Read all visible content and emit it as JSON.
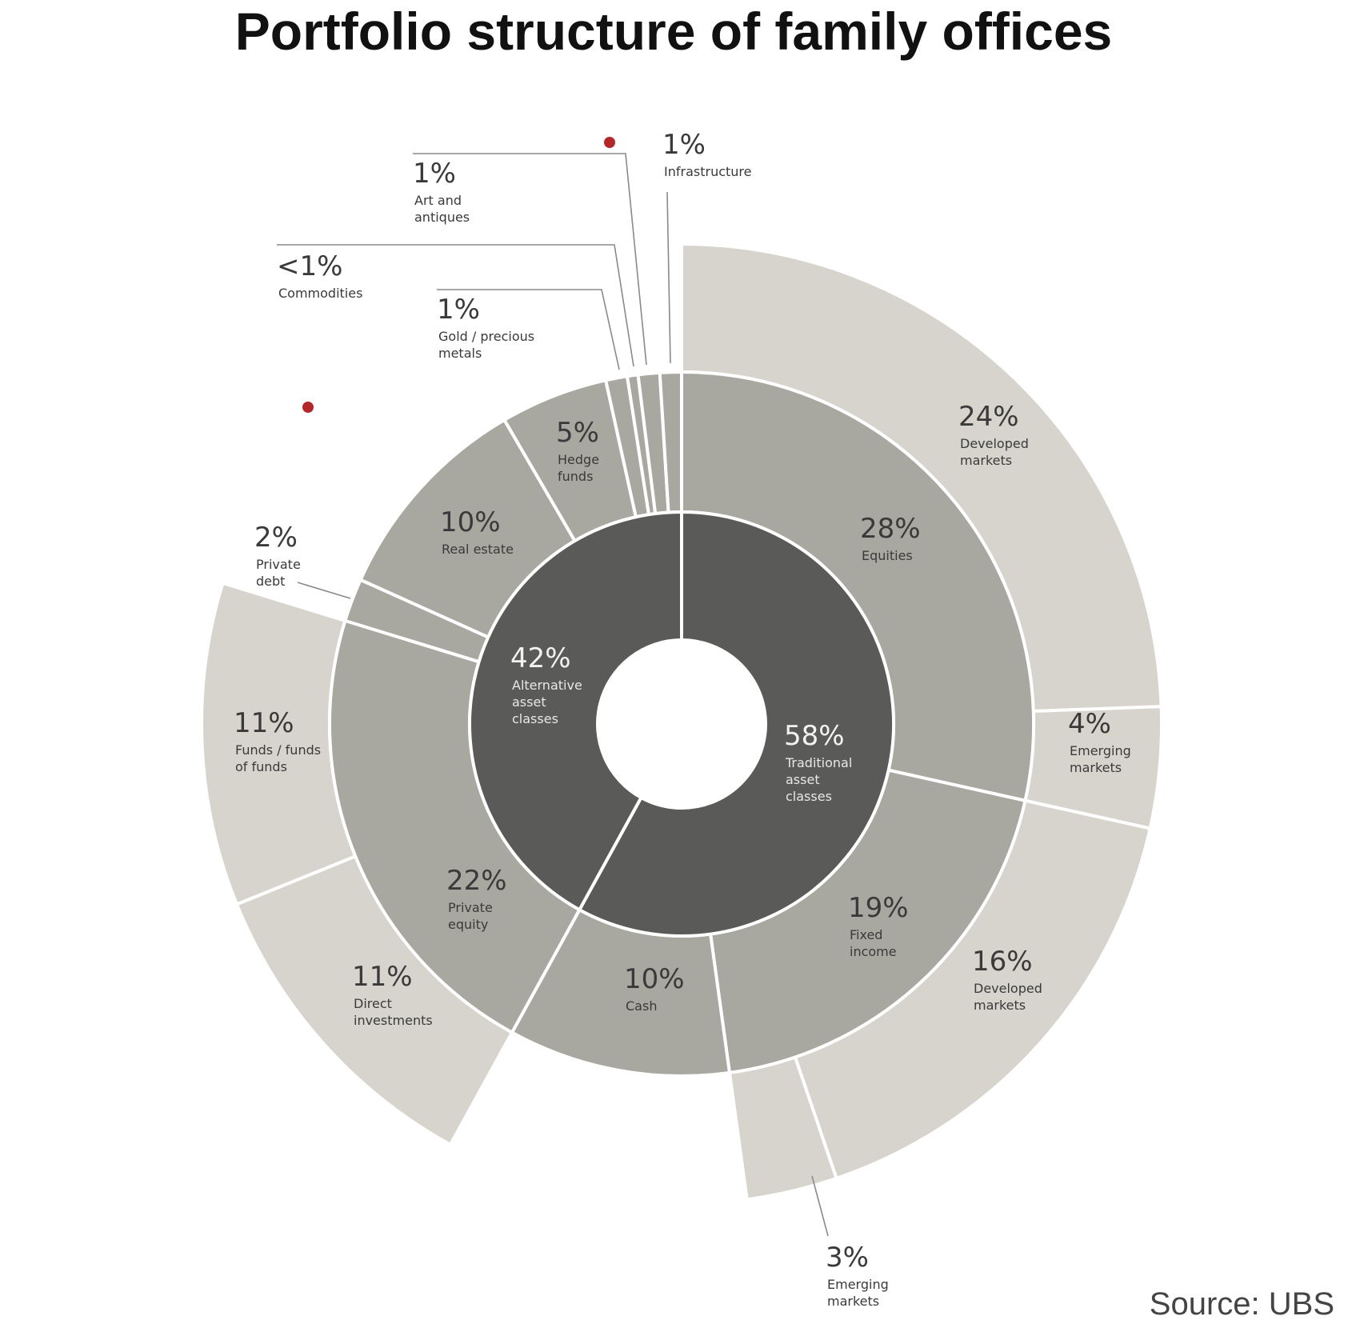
{
  "chart_data": {
    "type": "sunburst",
    "title": "Portfolio structure of family offices",
    "source": "Source: UBS",
    "colors": {
      "inner": "#5a5a58",
      "middle": "#a8a7a0",
      "outer": "#d6d4cc",
      "stroke": "#ffffff",
      "marker": "#b3272a"
    },
    "inner": [
      {
        "id": "traditional",
        "value": 58,
        "pct": "58%",
        "label": [
          "Traditional",
          "asset",
          "classes"
        ]
      },
      {
        "id": "alternative",
        "value": 42,
        "pct": "42%",
        "label": [
          "Alternative",
          "asset",
          "classes"
        ]
      }
    ],
    "middle": [
      {
        "id": "equities",
        "parent": "traditional",
        "value": 28,
        "pct": "28%",
        "label": [
          "Equities"
        ]
      },
      {
        "id": "fixed-income",
        "parent": "traditional",
        "value": 19,
        "pct": "19%",
        "label": [
          "Fixed",
          "income"
        ]
      },
      {
        "id": "cash",
        "parent": "traditional",
        "value": 10,
        "pct": "10%",
        "label": [
          "Cash"
        ]
      },
      {
        "id": "private-equity",
        "parent": "alternative",
        "value": 22,
        "pct": "22%",
        "label": [
          "Private",
          "equity"
        ]
      },
      {
        "id": "private-debt",
        "parent": "alternative",
        "value": 2,
        "pct": "2%",
        "label": [
          "Private",
          "debt"
        ]
      },
      {
        "id": "real-estate",
        "parent": "alternative",
        "value": 10,
        "pct": "10%",
        "label": [
          "Real estate"
        ]
      },
      {
        "id": "hedge-funds",
        "parent": "alternative",
        "value": 5,
        "pct": "5%",
        "label": [
          "Hedge",
          "funds"
        ]
      },
      {
        "id": "gold",
        "parent": "alternative",
        "value": 1,
        "pct": "1%",
        "label": [
          "Gold / precious",
          "metals"
        ]
      },
      {
        "id": "commodities",
        "parent": "alternative",
        "value": 0.5,
        "pct": "<1%",
        "label": [
          "Commodities"
        ]
      },
      {
        "id": "art",
        "parent": "alternative",
        "value": 1,
        "pct": "1%",
        "label": [
          "Art and",
          "antiques"
        ]
      },
      {
        "id": "infrastructure",
        "parent": "alternative",
        "value": 1,
        "pct": "1%",
        "label": [
          "Infrastructure"
        ]
      }
    ],
    "outer": [
      {
        "id": "eq-developed",
        "parent": "equities",
        "value": 24,
        "pct": "24%",
        "label": [
          "Developed",
          "markets"
        ]
      },
      {
        "id": "eq-emerging",
        "parent": "equities",
        "value": 4,
        "pct": "4%",
        "label": [
          "Emerging",
          "markets"
        ]
      },
      {
        "id": "fi-developed",
        "parent": "fixed-income",
        "value": 16,
        "pct": "16%",
        "label": [
          "Developed",
          "markets"
        ]
      },
      {
        "id": "fi-emerging",
        "parent": "fixed-income",
        "value": 3,
        "pct": "3%",
        "label": [
          "Emerging",
          "markets"
        ]
      },
      {
        "id": "pe-direct",
        "parent": "private-equity",
        "value": 11,
        "pct": "11%",
        "label": [
          "Direct",
          "investments"
        ]
      },
      {
        "id": "pe-funds",
        "parent": "private-equity",
        "value": 11,
        "pct": "11%",
        "label": [
          "Funds / funds",
          "of funds"
        ]
      }
    ]
  }
}
